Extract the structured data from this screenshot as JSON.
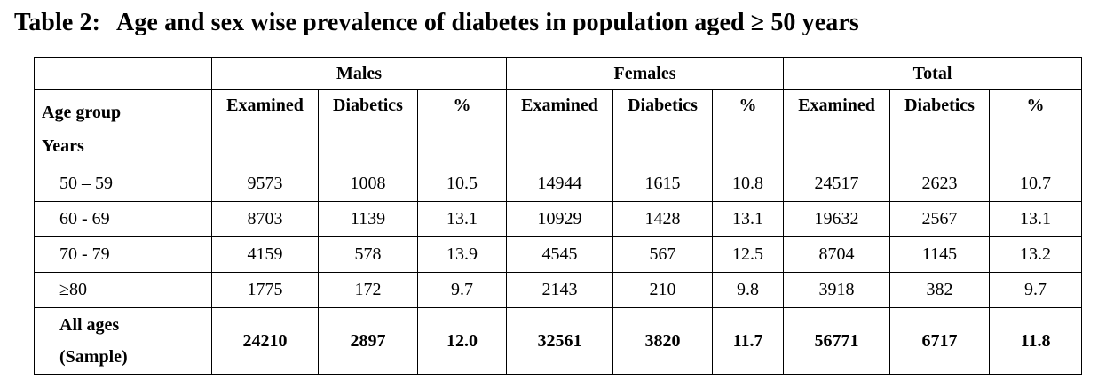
{
  "title": {
    "label": "Table 2:",
    "text": "Age and sex wise prevalence of diabetes in population aged ≥ 50 years"
  },
  "groups": [
    "Males",
    "Females",
    "Total"
  ],
  "age_header": [
    "Age group",
    "Years"
  ],
  "sub_headers": [
    "Examined",
    "Diabetics",
    "%"
  ],
  "rows": [
    {
      "age": "50 – 59",
      "values": [
        "9573",
        "1008",
        "10.5",
        "14944",
        "1615",
        "10.8",
        "24517",
        "2623",
        "10.7"
      ]
    },
    {
      "age": "60 - 69",
      "values": [
        "8703",
        "1139",
        "13.1",
        "10929",
        "1428",
        "13.1",
        "19632",
        "2567",
        "13.1"
      ]
    },
    {
      "age": "70 - 79",
      "values": [
        "4159",
        "578",
        "13.9",
        "4545",
        "567",
        "12.5",
        "8704",
        "1145",
        "13.2"
      ]
    },
    {
      "age": "≥80",
      "values": [
        "1775",
        "172",
        "9.7",
        "2143",
        "210",
        "9.8",
        "3918",
        "382",
        "9.7"
      ]
    }
  ],
  "total_row": {
    "age": [
      "All ages",
      "(Sample)"
    ],
    "values": [
      "24210",
      "2897",
      "12.0",
      "32561",
      "3820",
      "11.7",
      "56771",
      "6717",
      "11.8"
    ]
  }
}
